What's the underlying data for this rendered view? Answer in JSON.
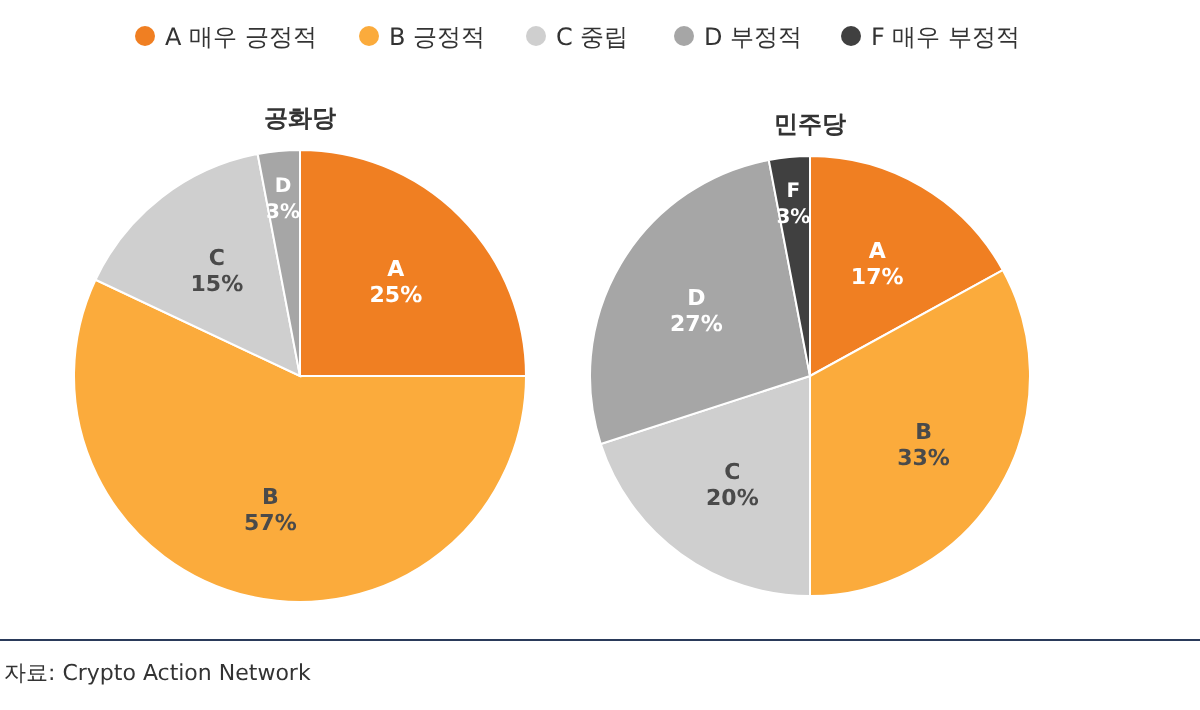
{
  "chart_data": [
    {
      "type": "pie",
      "title": "공화당",
      "categories": [
        "A",
        "B",
        "C",
        "D"
      ],
      "values": [
        25,
        57,
        15,
        3
      ],
      "colors": [
        "#f07f22",
        "#fbab3c",
        "#cfcfcf",
        "#a6a6a6"
      ],
      "value_labels": [
        "25%",
        "57%",
        "15%",
        "3%"
      ],
      "annotations": [
        "자료: Crypto Action Network"
      ]
    },
    {
      "type": "pie",
      "title": "민주당",
      "categories": [
        "A 매우 긍정적",
        "B 긍정적",
        "C 중립",
        "D 부정적",
        "F 매우 부정적"
      ],
      "values": [
        17,
        33,
        20,
        27,
        3
      ],
      "colors": [
        "#f07f22",
        "#fbab3c",
        "#cfcfcf",
        "#a6a6a6",
        "#404040"
      ],
      "value_labels": [
        "A 17%",
        "B 33%",
        "C 20%",
        "D 27%",
        "F 3%"
      ],
      "legend": "top"
    }
  ]
}
